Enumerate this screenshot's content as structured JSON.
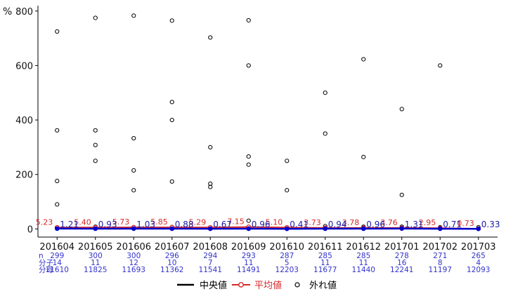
{
  "chart_data": {
    "type": "line",
    "ylabel": "%",
    "ylim": [
      -30,
      820
    ],
    "yticks": [
      "0",
      "200",
      "400",
      "600",
      "800"
    ],
    "categories": [
      "201604",
      "201605",
      "201606",
      "201607",
      "201608",
      "201609",
      "201610",
      "201611",
      "201612",
      "201701",
      "201702",
      "201703"
    ],
    "mean_values": [
      5.23,
      5.4,
      5.73,
      5.85,
      5.29,
      7.15,
      5.1,
      3.73,
      3.78,
      3.76,
      2.95,
      0.73
    ],
    "mean_labels": [
      "5.23",
      "5.40",
      "5.73",
      "5.85",
      "5.29",
      "7.15",
      "5.10",
      "3.73",
      "3.78",
      "3.76",
      "2.95",
      "0.73"
    ],
    "median_values": [
      1.21,
      0.93,
      1.03,
      0.88,
      0.67,
      0.96,
      0.41,
      0.94,
      0.96,
      1.31,
      0.71,
      0.33
    ],
    "median_labels": [
      "1.21",
      "0.93",
      "1.03",
      "0.88",
      "0.67",
      "0.96",
      "0.41",
      "0.94",
      "0.96",
      "1.31",
      "0.71",
      "0.33"
    ],
    "outliers": [
      [
        725,
        362,
        176,
        90,
        5
      ],
      [
        775,
        362,
        308,
        250,
        8
      ],
      [
        783,
        333,
        215,
        142,
        6
      ],
      [
        765,
        466,
        400,
        174,
        7
      ],
      [
        703,
        300,
        166,
        154,
        5
      ],
      [
        766,
        600,
        266,
        236,
        30
      ],
      [
        250,
        142,
        5
      ],
      [
        500,
        350,
        10
      ],
      [
        623,
        264,
        8
      ],
      [
        440,
        125,
        8
      ],
      [
        600,
        6
      ],
      [
        6
      ]
    ],
    "table": {
      "row_labels": [
        "n",
        "分子",
        "分母"
      ],
      "n": [
        "299",
        "300",
        "300",
        "296",
        "294",
        "293",
        "287",
        "285",
        "285",
        "278",
        "271",
        "265"
      ],
      "numerator": [
        "14",
        "11",
        "12",
        "10",
        "7",
        "11",
        "5",
        "11",
        "11",
        "16",
        "8",
        "4"
      ],
      "denominator": [
        "11610",
        "11825",
        "11693",
        "11362",
        "11541",
        "11491",
        "12203",
        "11677",
        "11440",
        "12241",
        "11197",
        "12093"
      ]
    },
    "legend": {
      "position": "bottom",
      "items": [
        {
          "label": "中央値",
          "color": "#000000"
        },
        {
          "label": "平均値",
          "color": "#d62728"
        },
        {
          "label": "外れ値",
          "color": "#000000"
        }
      ]
    },
    "colors": {
      "mean": "#d62728",
      "median": "#0000cc",
      "median_line": "#000000",
      "table_text": "#3333cc"
    },
    "grid": false
  }
}
